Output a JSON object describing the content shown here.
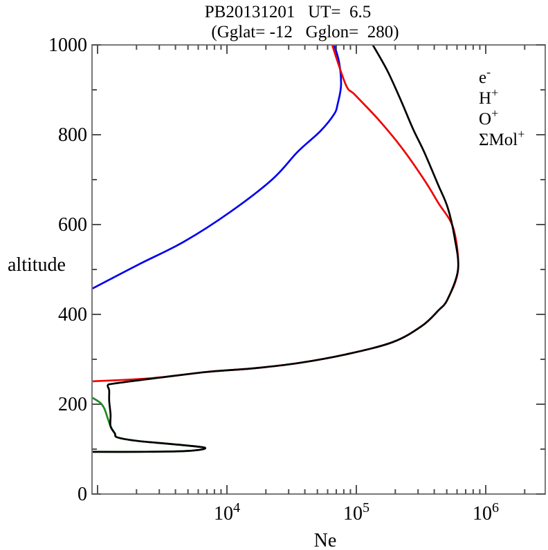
{
  "header": {
    "title": "PB20131201   UT=  6.5",
    "subtitle": "(Gglat= -12   Gglon=  280)"
  },
  "chart_data": {
    "type": "line",
    "title": "PB20131201 UT= 6.5",
    "subtitle": "(Gglat= -12 Gglon= 280)",
    "xlabel": "Ne",
    "ylabel": "altitude",
    "x_axis": {
      "scale": "log",
      "min": 906,
      "max": 2880000,
      "tick_labels": [
        {
          "value": 10000,
          "label": "10^4"
        },
        {
          "value": 100000,
          "label": "10^5"
        },
        {
          "value": 1000000,
          "label": "10^6"
        }
      ]
    },
    "y_axis": {
      "scale": "linear",
      "min": 0,
      "max": 1000,
      "major_tick_step": 200,
      "minor_tick_step": 100,
      "tick_labels": [
        "0",
        "200",
        "400",
        "600",
        "800",
        "1000"
      ]
    },
    "grid": false,
    "legend": {
      "position": "top-right",
      "entries": [
        {
          "id": "e",
          "label": "e^-",
          "color": "#000000"
        },
        {
          "id": "h",
          "label": "H^+",
          "color": "#0000ee"
        },
        {
          "id": "o",
          "label": "O^+",
          "color": "#ee0000"
        },
        {
          "id": "mol",
          "label": "ΣMol^+",
          "color": "#1e8b1e"
        }
      ]
    },
    "series": [
      {
        "id": "mol",
        "name": "Sum of molecular ions",
        "color": "#1e8b1e",
        "points": [
          [
            906,
            215
          ],
          [
            1050,
            203
          ],
          [
            1130,
            190
          ],
          [
            1200,
            168
          ],
          [
            1260,
            151
          ],
          [
            1360,
            135
          ],
          [
            1430,
            126
          ],
          [
            2070,
            118
          ],
          [
            3830,
            111
          ],
          [
            6750,
            103
          ],
          [
            5000,
            96
          ],
          [
            2070,
            94
          ],
          [
            906,
            94
          ]
        ]
      },
      {
        "id": "h",
        "name": "H+ density",
        "color": "#0000ee",
        "points": [
          [
            67400,
            1000
          ],
          [
            73500,
            962
          ],
          [
            76200,
            911
          ],
          [
            71800,
            869
          ],
          [
            67400,
            846
          ],
          [
            52700,
            808
          ],
          [
            35200,
            762
          ],
          [
            22300,
            700
          ],
          [
            10600,
            628
          ],
          [
            4660,
            562
          ],
          [
            2070,
            511
          ],
          [
            906,
            457
          ]
        ]
      },
      {
        "id": "o",
        "name": "O+ density",
        "color": "#ee0000",
        "points": [
          [
            65000,
            1000
          ],
          [
            83000,
            911
          ],
          [
            97500,
            889
          ],
          [
            148000,
            834
          ],
          [
            223000,
            772
          ],
          [
            334000,
            700
          ],
          [
            428000,
            649
          ],
          [
            561000,
            592
          ],
          [
            611000,
            500
          ],
          [
            508000,
            434
          ],
          [
            428000,
            408
          ],
          [
            320000,
            374
          ],
          [
            190000,
            338
          ],
          [
            83000,
            311
          ],
          [
            36400,
            292
          ],
          [
            16200,
            280
          ],
          [
            7080,
            272
          ],
          [
            2630,
            258
          ],
          [
            906,
            251
          ]
        ]
      },
      {
        "id": "e",
        "name": "Electron density",
        "color": "#000000",
        "points": [
          [
            134000,
            1000
          ],
          [
            174000,
            942
          ],
          [
            223000,
            874
          ],
          [
            275000,
            812
          ],
          [
            334000,
            762
          ],
          [
            428000,
            689
          ],
          [
            508000,
            638
          ],
          [
            574000,
            572
          ],
          [
            611000,
            500
          ],
          [
            508000,
            434
          ],
          [
            428000,
            408
          ],
          [
            320000,
            374
          ],
          [
            190000,
            338
          ],
          [
            83000,
            311
          ],
          [
            36400,
            292
          ],
          [
            16200,
            280
          ],
          [
            7080,
            272
          ],
          [
            2630,
            257
          ],
          [
            1340,
            246
          ],
          [
            1200,
            242
          ],
          [
            1230,
            231
          ],
          [
            1230,
            208
          ],
          [
            1260,
            177
          ],
          [
            1260,
            151
          ],
          [
            1360,
            135
          ],
          [
            1430,
            126
          ],
          [
            2070,
            118
          ],
          [
            3830,
            111
          ],
          [
            6750,
            103
          ],
          [
            5000,
            96
          ],
          [
            2070,
            94
          ],
          [
            906,
            94
          ]
        ]
      }
    ],
    "annotations": {
      "f_peak": {
        "altitude": 500,
        "ne": 611000
      },
      "e_peak": {
        "altitude": 103,
        "ne": 6750
      }
    }
  },
  "style": {
    "box_color": "#787878",
    "tick_color": "#505050",
    "text_color": "#000000"
  }
}
